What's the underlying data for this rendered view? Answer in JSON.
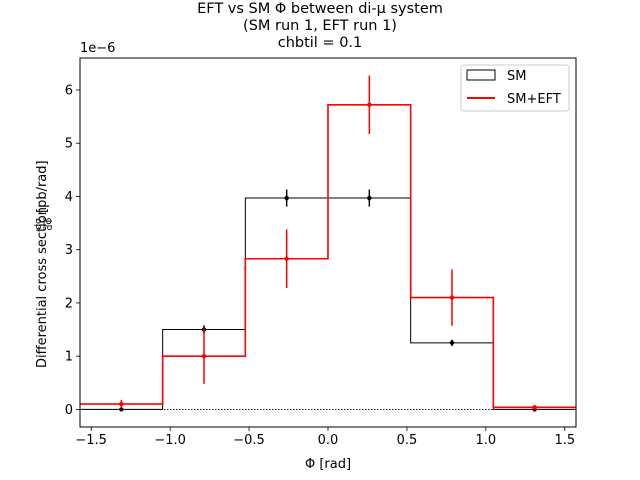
{
  "chart_data": {
    "type": "histogram",
    "title_lines": [
      "EFT vs SM Φ between di-μ system",
      "(SM run 1, EFT run 1)",
      "chbtil = 0.1"
    ],
    "xlabel": "Φ [rad]",
    "ylabel": "Differential cross section dσ/dΦ [pb/rad]",
    "ylabel_prefix": "Differential cross section",
    "ylabel_frac_num": "dσ",
    "ylabel_frac_den": "dΦ",
    "ylabel_units": "[pb/rad]",
    "y_offset_text": "1e−6",
    "xlim": [
      -1.5708,
      1.5708
    ],
    "ylim": [
      -0.33,
      6.6
    ],
    "x_ticks": [
      -1.5,
      -1.0,
      -0.5,
      0.0,
      0.5,
      1.0,
      1.5
    ],
    "x_tick_labels": [
      "−1.5",
      "−1.0",
      "−0.5",
      "0.0",
      "0.5",
      "1.0",
      "1.5"
    ],
    "y_ticks": [
      0,
      1,
      2,
      3,
      4,
      5,
      6
    ],
    "y_tick_labels": [
      "0",
      "1",
      "2",
      "3",
      "4",
      "5",
      "6"
    ],
    "bin_edges": [
      -1.5708,
      -1.0472,
      -0.5236,
      0.0,
      0.5236,
      1.0472,
      1.5708
    ],
    "bin_centers": [
      -1.309,
      -0.7854,
      -0.2618,
      0.2618,
      0.7854,
      1.309
    ],
    "series": [
      {
        "name": "SM",
        "color": "#000000",
        "values": [
          0.0,
          1.5,
          3.97,
          3.97,
          1.25,
          0.0
        ],
        "errors": [
          0.02,
          0.08,
          0.16,
          0.16,
          0.06,
          0.02
        ]
      },
      {
        "name": "SM+EFT",
        "color": "#ff0000",
        "values": [
          0.1,
          1.0,
          2.83,
          5.72,
          2.1,
          0.04
        ],
        "errors": [
          0.08,
          0.52,
          0.55,
          0.55,
          0.53,
          0.04
        ]
      }
    ],
    "legend_position": "upper right",
    "zero_line": "dotted"
  }
}
